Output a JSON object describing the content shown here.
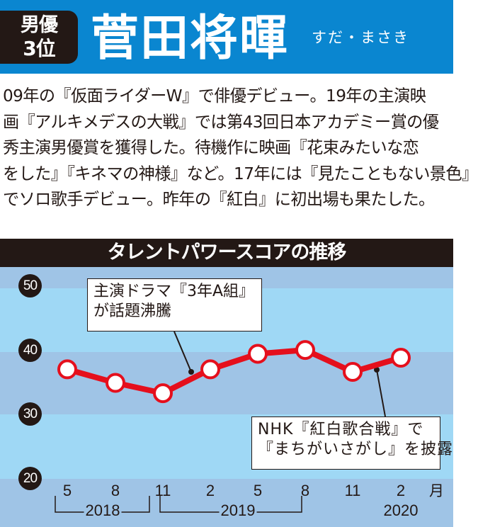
{
  "header": {
    "rank_badge": {
      "line1": "男優",
      "line2": "3位"
    },
    "name": "菅田将暉",
    "reading": "すだ・まさき",
    "colors": {
      "header_bg": "#0a86d0",
      "badge_bg": "#231815"
    }
  },
  "bio": {
    "lines": [
      "09年の『仮面ライダーW』で俳優デビュー。19年の主演映",
      "画『アルキメデスの大戦』では第43回日本アカデミー賞の優",
      "秀主演男優賞を獲得した。待機作に映画『花束みたいな恋",
      "をした』『キネマの神様』など。17年には『見たこともない景色』",
      "でソロ歌手デビュー。昨年の『紅白』に初出場も果たした。"
    ]
  },
  "chart_title": "タレントパワースコアの推移",
  "chart": {
    "y_ticks": [
      "50",
      "40",
      "30",
      "20"
    ],
    "x_ticks": [
      "5",
      "8",
      "11",
      "2",
      "5",
      "8",
      "11",
      "2"
    ],
    "x_unit": "月",
    "years": [
      "2018",
      "2019",
      "2020"
    ],
    "annotations": [
      {
        "line1": "主演ドラマ『3年A組』",
        "line2": "が話題沸騰"
      },
      {
        "line1": "NHK『紅白歌合戦』で",
        "line2": "『まちがいさがし』を披露"
      }
    ],
    "colors": {
      "line": "#e50f1c",
      "band_dark": "#9fc4e6",
      "band_light": "#9fd8f5"
    }
  },
  "chart_data": {
    "type": "line",
    "title": "タレントパワースコアの推移",
    "xlabel": "月",
    "ylabel": "",
    "categories": [
      "2018-05",
      "2018-08",
      "2018-11",
      "2019-02",
      "2019-05",
      "2019-08",
      "2019-11",
      "2020-02"
    ],
    "x_tick_labels": [
      "5",
      "8",
      "11",
      "2",
      "5",
      "8",
      "11",
      "2"
    ],
    "year_groups": [
      {
        "year": "2018",
        "months": [
          "5",
          "8",
          "11"
        ]
      },
      {
        "year": "2019",
        "months": [
          "2",
          "5",
          "8",
          "11"
        ]
      },
      {
        "year": "2020",
        "months": [
          "2"
        ]
      }
    ],
    "series": [
      {
        "name": "菅田将暉",
        "values": [
          37.1,
          35.0,
          33.4,
          37.1,
          39.5,
          40.1,
          36.7,
          38.9
        ]
      }
    ],
    "ylim": [
      20,
      50
    ],
    "y_ticks": [
      20,
      30,
      40,
      50
    ],
    "grid": "alternating horizontal bands",
    "annotations": [
      {
        "text": "主演ドラマ『3年A組』が話題沸騰",
        "between": [
          "2018-11",
          "2019-02"
        ]
      },
      {
        "text": "NHK『紅白歌合戦』で『まちがいさがし』を披露",
        "between": [
          "2019-11",
          "2020-02"
        ]
      }
    ]
  }
}
